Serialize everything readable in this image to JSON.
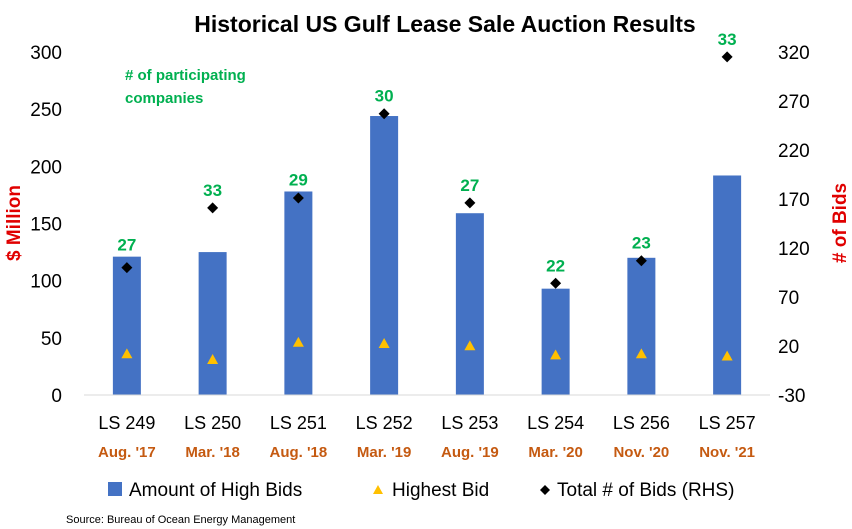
{
  "chart_data": {
    "type": "bar",
    "title": "Historical US Gulf Lease Sale Auction Results",
    "ylabel": "$ Million",
    "y2label": "# of Bids",
    "ylim": [
      0,
      300
    ],
    "y2lim": [
      -30,
      320
    ],
    "yticks": [
      "0",
      "50",
      "100",
      "150",
      "200",
      "250",
      "300"
    ],
    "y2ticks": [
      "-30",
      "20",
      "70",
      "120",
      "170",
      "220",
      "270",
      "320"
    ],
    "categories": [
      "LS 249",
      "LS 250",
      "LS 251",
      "LS 252",
      "LS 253",
      "LS 254",
      "LS 256",
      "LS 257"
    ],
    "dates": [
      "Aug. '17",
      "Mar. '18",
      "Aug. '18",
      "Mar. '19",
      "Aug. '19",
      "Mar. '20",
      "Nov. '20",
      "Nov. '21"
    ],
    "participating_companies": [
      "27",
      "33",
      "29",
      "30",
      "27",
      "22",
      "23",
      "33"
    ],
    "annotation": "# of participating companies",
    "series": [
      {
        "name": "Amount of High Bids",
        "kind": "bar",
        "axis": "left",
        "color": "#4472C4",
        "values": [
          121,
          125,
          178,
          244,
          159,
          93,
          120,
          192
        ]
      },
      {
        "name": "Highest Bid",
        "kind": "marker",
        "axis": "left",
        "color": "#FFC000",
        "values": [
          36,
          31,
          46,
          45,
          43,
          35,
          36,
          34
        ]
      },
      {
        "name": "Total # of Bids (RHS)",
        "kind": "marker",
        "axis": "right",
        "color": "#000000",
        "values": [
          100,
          161,
          171,
          257,
          166,
          84,
          107,
          315
        ]
      }
    ],
    "legend_position": "bottom",
    "grid": false
  },
  "source": "Source: Bureau of Ocean Energy Management"
}
